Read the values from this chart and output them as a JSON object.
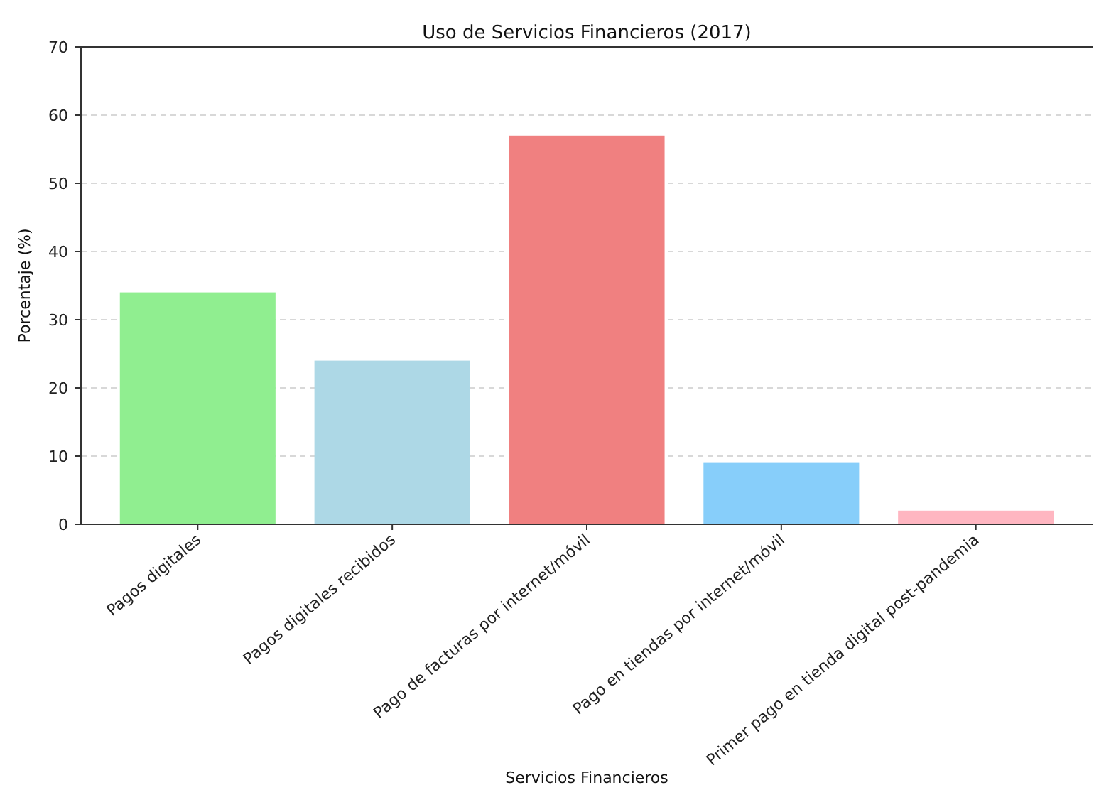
{
  "chart_data": {
    "type": "bar",
    "title": "Uso de Servicios Financieros (2017)",
    "xlabel": "Servicios Financieros",
    "ylabel": "Porcentaje (%)",
    "categories": [
      "Pagos digitales",
      "Pagos digitales recibidos",
      "Pago de facturas por internet/móvil",
      "Pago en tiendas por internet/móvil",
      "Primer pago en tienda digital post-pandemia"
    ],
    "values": [
      34,
      24,
      57,
      9,
      2
    ],
    "colors": [
      "#90ee90",
      "#add8e6",
      "#f08080",
      "#87cefa",
      "#ffb6c1"
    ],
    "ylim": [
      0,
      70
    ],
    "yticks": [
      0,
      10,
      20,
      30,
      40,
      50,
      60,
      70
    ],
    "grid": "y"
  }
}
